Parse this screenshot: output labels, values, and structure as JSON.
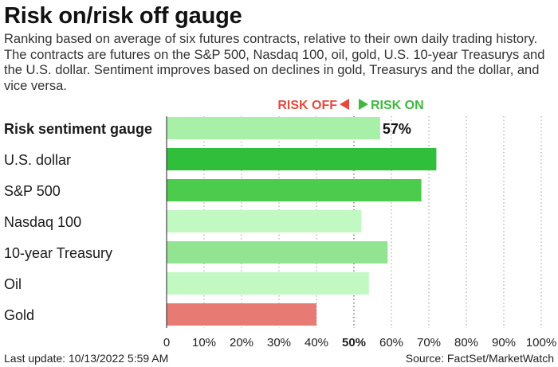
{
  "header": {
    "title": "Risk on/risk off gauge",
    "subtitle": "Ranking based on average of six futures contracts, relative to their own daily trading history. The contracts are futures on the S&P 500, Nasdaq 100, oil, gold, U.S. 10-year Treasurys and the U.S. dollar. Sentiment improves based on declines in gold, Treasurys and the dollar, and vice versa."
  },
  "legend": {
    "risk_off": "RISK OFF",
    "risk_on": "RISK ON",
    "risk_off_color": "#e8493c",
    "risk_on_color": "#3dba3d"
  },
  "footer": {
    "last_update": "Last update: 10/13/2022 5:59 AM",
    "source": "Source: FactSet/MarketWatch"
  },
  "chart_data": {
    "type": "bar",
    "orientation": "horizontal",
    "categories": [
      "Risk sentiment gauge",
      "U.S. dollar",
      "S&P 500",
      "Nasdaq 100",
      "10-year Treasury",
      "Oil",
      "Gold"
    ],
    "values": [
      57,
      72,
      68,
      52,
      59,
      54,
      40
    ],
    "value_label": {
      "category": "Risk sentiment gauge",
      "text": "57%"
    },
    "bar_colors": [
      "#a8f0a8",
      "#2fbf3a",
      "#4ccc4c",
      "#c2f8c2",
      "#92e492",
      "#c2f8c2",
      "#e87a74"
    ],
    "xlim": [
      0,
      100
    ],
    "xticks": [
      "0",
      "10%",
      "20%",
      "30%",
      "40%",
      "50%",
      "60%",
      "70%",
      "80%",
      "90%",
      "100%"
    ],
    "xtick_values": [
      0,
      10,
      20,
      30,
      40,
      50,
      60,
      70,
      80,
      90,
      100
    ],
    "grid": "vertical dotted",
    "reference_line": 50
  }
}
